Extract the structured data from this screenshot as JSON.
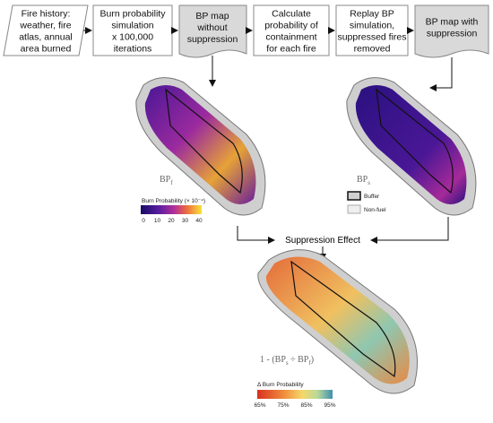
{
  "flow": [
    {
      "lines": [
        "Fire history:",
        "weather, fire",
        "atlas, annual",
        "area burned"
      ]
    },
    {
      "lines": [
        "Burn probability",
        "simulation",
        "x 100,000",
        "iterations"
      ]
    },
    {
      "lines": [
        "BP map",
        "without",
        "suppression"
      ]
    },
    {
      "lines": [
        "Calculate",
        "probability of",
        "containment",
        "for each fire"
      ]
    },
    {
      "lines": [
        "Replay BP",
        "simulation,",
        "suppressed fires",
        "removed"
      ]
    },
    {
      "lines": [
        "BP map with",
        "suppression"
      ]
    }
  ],
  "map_left": {
    "label": {
      "main": "BP",
      "sub": "f"
    },
    "legend_title": "Burn Probability",
    "legend_unit": "(× 10⁻⁴)",
    "ticks": [
      "0",
      "10",
      "20",
      "30",
      "40"
    ]
  },
  "map_right": {
    "label": {
      "main": "BP",
      "sub": "s"
    },
    "legend": [
      "Buffer",
      "Non-fuel"
    ]
  },
  "suppression_effect": "Suppression Effect",
  "map_bottom": {
    "formula": [
      "1 - (BP",
      "s",
      " ÷ BP",
      "f",
      ")"
    ],
    "legend_title": "Δ Burn Probability",
    "ticks": [
      "65%",
      "75%",
      "85%",
      "95%"
    ]
  }
}
